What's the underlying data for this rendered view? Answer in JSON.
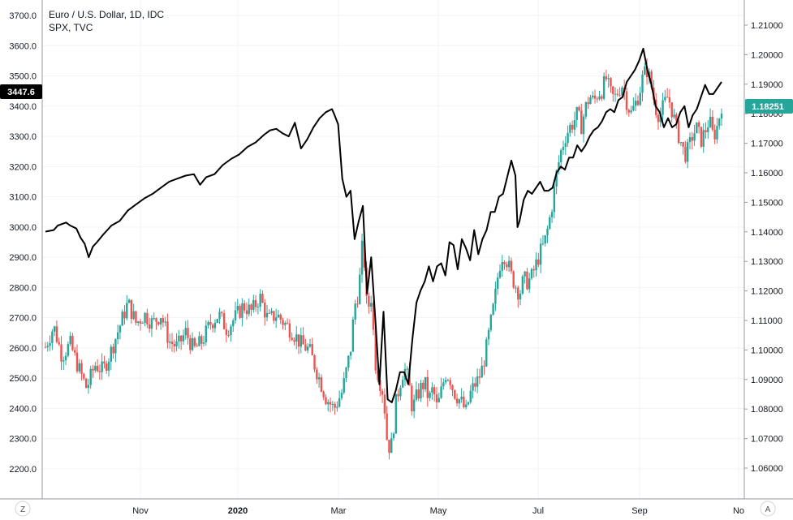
{
  "legend": {
    "main_series": "Euro / U.S. Dollar, 1D, IDC",
    "overlay_series": "SPX, TVC"
  },
  "badges": {
    "left_price": "3447.6",
    "right_price": "1.18251",
    "left_color": "#000000",
    "right_color": "#26a69a"
  },
  "buttons": {
    "left_corner": "Z",
    "right_corner": "A"
  },
  "colors": {
    "up": "#26a69a",
    "down": "#ef5350",
    "line": "#000000",
    "grid": "#f0f3fa",
    "axis": "#131722"
  },
  "chart_data": {
    "type": "candlestick+line",
    "x_ticks": [
      "Nov",
      "2020",
      "Mar",
      "May",
      "Jul",
      "Sep",
      "No"
    ],
    "left_axis": {
      "series": "SPX, TVC",
      "ticks": [
        "3700.0",
        "3600.0",
        "3500.0",
        "3400.0",
        "3300.0",
        "3200.0",
        "3100.0",
        "3000.0",
        "2900.0",
        "2800.0",
        "2700.0",
        "2600.0",
        "2500.0",
        "2400.0",
        "2300.0",
        "2200.0"
      ],
      "range": [
        2200,
        3700
      ]
    },
    "right_axis": {
      "series": "Euro / U.S. Dollar, 1D, IDC",
      "ticks": [
        "1.21000",
        "1.20000",
        "1.19000",
        "1.18000",
        "1.17000",
        "1.16000",
        "1.15000",
        "1.14000",
        "1.13000",
        "1.12000",
        "1.11000",
        "1.10000",
        "1.09000",
        "1.08000",
        "1.07000",
        "1.06000"
      ],
      "range": [
        1.06,
        1.21
      ]
    },
    "spx_points": [
      [
        0.0,
        2985
      ],
      [
        0.02,
        2990
      ],
      [
        0.03,
        3005
      ],
      [
        0.05,
        3015
      ],
      [
        0.06,
        3005
      ],
      [
        0.075,
        2995
      ],
      [
        0.085,
        2965
      ],
      [
        0.095,
        2945
      ],
      [
        0.105,
        2900
      ],
      [
        0.115,
        2935
      ],
      [
        0.125,
        2950
      ],
      [
        0.14,
        2975
      ],
      [
        0.16,
        3005
      ],
      [
        0.18,
        3020
      ],
      [
        0.2,
        3055
      ],
      [
        0.22,
        3075
      ],
      [
        0.24,
        3095
      ],
      [
        0.26,
        3110
      ],
      [
        0.28,
        3130
      ],
      [
        0.3,
        3150
      ],
      [
        0.32,
        3160
      ],
      [
        0.34,
        3170
      ],
      [
        0.36,
        3175
      ],
      [
        0.375,
        3140
      ],
      [
        0.39,
        3165
      ],
      [
        0.41,
        3175
      ],
      [
        0.43,
        3205
      ],
      [
        0.45,
        3225
      ],
      [
        0.47,
        3240
      ],
      [
        0.49,
        3265
      ],
      [
        0.51,
        3280
      ],
      [
        0.53,
        3305
      ],
      [
        0.545,
        3320
      ],
      [
        0.56,
        3325
      ],
      [
        0.575,
        3310
      ],
      [
        0.59,
        3300
      ],
      [
        0.605,
        3345
      ],
      [
        0.62,
        3260
      ],
      [
        0.635,
        3290
      ],
      [
        0.65,
        3330
      ],
      [
        0.665,
        3360
      ],
      [
        0.68,
        3380
      ],
      [
        0.695,
        3390
      ],
      [
        0.7,
        3375
      ],
      [
        0.71,
        3340
      ],
      [
        0.72,
        3160
      ],
      [
        0.73,
        3100
      ],
      [
        0.74,
        3120
      ],
      [
        0.75,
        2960
      ],
      [
        0.76,
        3020
      ],
      [
        0.77,
        3070
      ],
      [
        0.78,
        2780
      ],
      [
        0.79,
        2900
      ],
      [
        0.8,
        2700
      ],
      [
        0.81,
        2480
      ],
      [
        0.82,
        2720
      ],
      [
        0.83,
        2430
      ],
      [
        0.84,
        2420
      ],
      [
        0.85,
        2460
      ],
      [
        0.86,
        2520
      ],
      [
        0.87,
        2520
      ],
      [
        0.88,
        2480
      ],
      [
        0.89,
        2630
      ],
      [
        0.9,
        2750
      ],
      [
        0.91,
        2790
      ],
      [
        0.92,
        2820
      ],
      [
        0.93,
        2870
      ],
      [
        0.94,
        2820
      ],
      [
        0.95,
        2870
      ],
      [
        0.96,
        2880
      ],
      [
        0.97,
        2840
      ],
      [
        0.98,
        2950
      ],
      [
        0.99,
        2940
      ],
      [
        1.0,
        2860
      ],
      [
        1.01,
        2960
      ],
      [
        1.02,
        2930
      ],
      [
        1.03,
        2890
      ],
      [
        1.04,
        2990
      ],
      [
        1.05,
        2910
      ],
      [
        1.06,
        2960
      ],
      [
        1.07,
        2990
      ],
      [
        1.08,
        3050
      ],
      [
        1.09,
        3050
      ],
      [
        1.1,
        3100
      ],
      [
        1.11,
        3110
      ],
      [
        1.12,
        3165
      ],
      [
        1.13,
        3220
      ],
      [
        1.14,
        3170
      ],
      [
        1.145,
        3000
      ],
      [
        1.15,
        3020
      ],
      [
        1.16,
        3090
      ],
      [
        1.17,
        3120
      ],
      [
        1.18,
        3110
      ],
      [
        1.19,
        3130
      ],
      [
        1.2,
        3150
      ],
      [
        1.21,
        3120
      ],
      [
        1.22,
        3120
      ],
      [
        1.23,
        3130
      ],
      [
        1.24,
        3180
      ],
      [
        1.25,
        3200
      ],
      [
        1.26,
        3190
      ],
      [
        1.27,
        3230
      ],
      [
        1.28,
        3230
      ],
      [
        1.29,
        3270
      ],
      [
        1.3,
        3250
      ],
      [
        1.31,
        3270
      ],
      [
        1.32,
        3300
      ],
      [
        1.33,
        3320
      ],
      [
        1.34,
        3330
      ],
      [
        1.35,
        3350
      ],
      [
        1.36,
        3380
      ],
      [
        1.37,
        3390
      ],
      [
        1.38,
        3380
      ],
      [
        1.39,
        3420
      ],
      [
        1.4,
        3430
      ],
      [
        1.41,
        3480
      ],
      [
        1.42,
        3500
      ],
      [
        1.43,
        3520
      ],
      [
        1.44,
        3550
      ],
      [
        1.45,
        3590
      ],
      [
        1.46,
        3520
      ],
      [
        1.47,
        3470
      ],
      [
        1.48,
        3400
      ],
      [
        1.49,
        3380
      ],
      [
        1.5,
        3330
      ],
      [
        1.51,
        3360
      ],
      [
        1.52,
        3330
      ],
      [
        1.53,
        3340
      ],
      [
        1.54,
        3380
      ],
      [
        1.55,
        3400
      ],
      [
        1.56,
        3330
      ],
      [
        1.57,
        3370
      ],
      [
        1.58,
        3390
      ],
      [
        1.59,
        3430
      ],
      [
        1.6,
        3470
      ],
      [
        1.61,
        3440
      ],
      [
        1.62,
        3440
      ],
      [
        1.63,
        3460
      ],
      [
        1.64,
        3480
      ]
    ],
    "eurusd_path": [
      [
        0.0,
        1.101
      ],
      [
        0.02,
        1.108
      ],
      [
        0.04,
        1.098
      ],
      [
        0.06,
        1.102
      ],
      [
        0.08,
        1.094
      ],
      [
        0.1,
        1.087
      ],
      [
        0.12,
        1.095
      ],
      [
        0.14,
        1.093
      ],
      [
        0.16,
        1.1
      ],
      [
        0.18,
        1.108
      ],
      [
        0.2,
        1.116
      ],
      [
        0.22,
        1.109
      ],
      [
        0.24,
        1.112
      ],
      [
        0.26,
        1.109
      ],
      [
        0.28,
        1.112
      ],
      [
        0.3,
        1.103
      ],
      [
        0.32,
        1.101
      ],
      [
        0.34,
        1.106
      ],
      [
        0.36,
        1.1
      ],
      [
        0.38,
        1.103
      ],
      [
        0.4,
        1.109
      ],
      [
        0.42,
        1.112
      ],
      [
        0.44,
        1.107
      ],
      [
        0.46,
        1.111
      ],
      [
        0.48,
        1.115
      ],
      [
        0.5,
        1.113
      ],
      [
        0.52,
        1.118
      ],
      [
        0.54,
        1.11
      ],
      [
        0.56,
        1.112
      ],
      [
        0.58,
        1.109
      ],
      [
        0.6,
        1.106
      ],
      [
        0.62,
        1.102
      ],
      [
        0.64,
        1.1
      ],
      [
        0.66,
        1.092
      ],
      [
        0.68,
        1.084
      ],
      [
        0.7,
        1.08
      ],
      [
        0.72,
        1.086
      ],
      [
        0.74,
        1.1
      ],
      [
        0.75,
        1.115
      ],
      [
        0.76,
        1.12
      ],
      [
        0.77,
        1.138
      ],
      [
        0.78,
        1.113
      ],
      [
        0.79,
        1.118
      ],
      [
        0.8,
        1.096
      ],
      [
        0.81,
        1.09
      ],
      [
        0.82,
        1.085
      ],
      [
        0.83,
        1.067
      ],
      [
        0.84,
        1.068
      ],
      [
        0.85,
        1.082
      ],
      [
        0.86,
        1.089
      ],
      [
        0.87,
        1.094
      ],
      [
        0.88,
        1.09
      ],
      [
        0.89,
        1.08
      ],
      [
        0.9,
        1.084
      ],
      [
        0.91,
        1.087
      ],
      [
        0.92,
        1.089
      ],
      [
        0.93,
        1.083
      ],
      [
        0.94,
        1.087
      ],
      [
        0.95,
        1.08
      ],
      [
        0.96,
        1.086
      ],
      [
        0.97,
        1.092
      ],
      [
        0.98,
        1.091
      ],
      [
        0.99,
        1.086
      ],
      [
        1.0,
        1.084
      ],
      [
        1.01,
        1.082
      ],
      [
        1.02,
        1.079
      ],
      [
        1.03,
        1.085
      ],
      [
        1.04,
        1.088
      ],
      [
        1.05,
        1.09
      ],
      [
        1.06,
        1.094
      ],
      [
        1.07,
        1.101
      ],
      [
        1.08,
        1.109
      ],
      [
        1.09,
        1.117
      ],
      [
        1.1,
        1.128
      ],
      [
        1.11,
        1.133
      ],
      [
        1.12,
        1.13
      ],
      [
        1.13,
        1.125
      ],
      [
        1.14,
        1.122
      ],
      [
        1.15,
        1.119
      ],
      [
        1.16,
        1.124
      ],
      [
        1.17,
        1.123
      ],
      [
        1.18,
        1.125
      ],
      [
        1.19,
        1.129
      ],
      [
        1.2,
        1.133
      ],
      [
        1.21,
        1.136
      ],
      [
        1.22,
        1.142
      ],
      [
        1.23,
        1.15
      ],
      [
        1.24,
        1.16
      ],
      [
        1.25,
        1.167
      ],
      [
        1.26,
        1.172
      ],
      [
        1.27,
        1.175
      ],
      [
        1.28,
        1.177
      ],
      [
        1.29,
        1.18
      ],
      [
        1.3,
        1.176
      ],
      [
        1.31,
        1.182
      ],
      [
        1.32,
        1.186
      ],
      [
        1.33,
        1.184
      ],
      [
        1.34,
        1.187
      ],
      [
        1.35,
        1.188
      ],
      [
        1.36,
        1.192
      ],
      [
        1.37,
        1.187
      ],
      [
        1.38,
        1.185
      ],
      [
        1.39,
        1.188
      ],
      [
        1.4,
        1.19
      ],
      [
        1.41,
        1.184
      ],
      [
        1.42,
        1.18
      ],
      [
        1.43,
        1.183
      ],
      [
        1.44,
        1.187
      ],
      [
        1.45,
        1.193
      ],
      [
        1.46,
        1.195
      ],
      [
        1.47,
        1.189
      ],
      [
        1.48,
        1.182
      ],
      [
        1.49,
        1.179
      ],
      [
        1.5,
        1.183
      ],
      [
        1.51,
        1.186
      ],
      [
        1.52,
        1.181
      ],
      [
        1.53,
        1.175
      ],
      [
        1.54,
        1.171
      ],
      [
        1.55,
        1.166
      ],
      [
        1.56,
        1.168
      ],
      [
        1.57,
        1.173
      ],
      [
        1.58,
        1.175
      ],
      [
        1.59,
        1.171
      ],
      [
        1.6,
        1.174
      ],
      [
        1.61,
        1.178
      ],
      [
        1.62,
        1.172
      ],
      [
        1.63,
        1.176
      ],
      [
        1.64,
        1.183
      ]
    ]
  }
}
